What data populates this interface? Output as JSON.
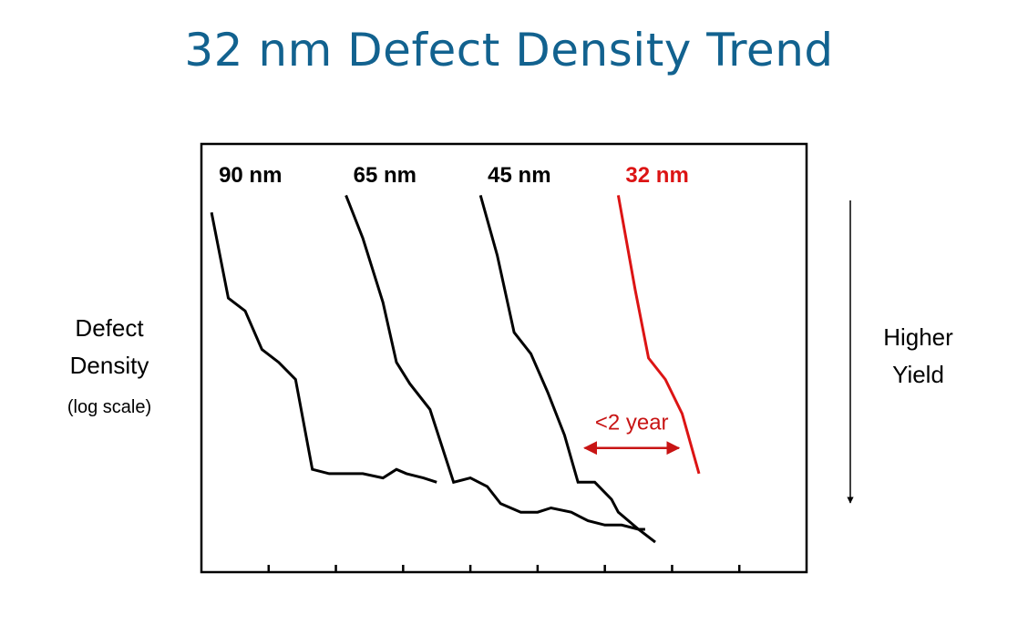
{
  "page": {
    "title": "32 nm Defect Density Trend",
    "title_color": "#12628f"
  },
  "y_axis_label": {
    "line1": "Defect",
    "line2": "Density",
    "line3": "(log scale)"
  },
  "side_annotation": {
    "line1": "Higher",
    "line2": "Yield",
    "icon": "down-arrow-icon"
  },
  "chart_data": {
    "type": "line",
    "title": "32 nm Defect Density Trend",
    "ylabel": "Defect Density (log scale)",
    "xlabel": "",
    "y_scale": "log",
    "x_ticks_count": 8,
    "x_tick_labels": [],
    "y_tick_labels": [],
    "grid": false,
    "xlim": [
      0,
      9
    ],
    "ylim": [
      0,
      1
    ],
    "series": [
      {
        "name": "90 nm",
        "color": "#000000",
        "x": [
          0.15,
          0.4,
          0.65,
          0.9,
          1.15,
          1.4,
          1.65,
          1.9,
          2.4,
          2.7,
          2.9,
          3.05,
          3.3,
          3.5
        ],
        "y": [
          0.84,
          0.64,
          0.61,
          0.52,
          0.49,
          0.45,
          0.24,
          0.23,
          0.23,
          0.22,
          0.24,
          0.23,
          0.22,
          0.21
        ]
      },
      {
        "name": "65 nm",
        "color": "#000000",
        "x": [
          2.15,
          2.4,
          2.7,
          2.9,
          3.1,
          3.4,
          3.75,
          4.0,
          4.25,
          4.45,
          4.75,
          5.0,
          5.2,
          5.5,
          5.75,
          6.0,
          6.25,
          6.5,
          6.6
        ],
        "y": [
          0.88,
          0.78,
          0.63,
          0.49,
          0.44,
          0.38,
          0.21,
          0.22,
          0.2,
          0.16,
          0.14,
          0.14,
          0.15,
          0.14,
          0.12,
          0.11,
          0.11,
          0.1,
          0.1
        ]
      },
      {
        "name": "45 nm",
        "color": "#000000",
        "x": [
          4.15,
          4.4,
          4.65,
          4.9,
          5.15,
          5.4,
          5.6,
          5.85,
          6.1,
          6.2,
          6.5,
          6.75
        ],
        "y": [
          0.88,
          0.74,
          0.56,
          0.51,
          0.42,
          0.32,
          0.21,
          0.21,
          0.17,
          0.14,
          0.1,
          0.07
        ]
      },
      {
        "name": "32 nm",
        "color": "#dc1414",
        "x": [
          6.2,
          6.45,
          6.65,
          6.9,
          7.15,
          7.4
        ],
        "y": [
          0.88,
          0.66,
          0.5,
          0.45,
          0.37,
          0.23
        ]
      }
    ],
    "annotations": [
      {
        "text": "<2 year",
        "color": "#c81414",
        "from_x": 5.7,
        "to_x": 7.1,
        "y": 0.29
      }
    ]
  }
}
